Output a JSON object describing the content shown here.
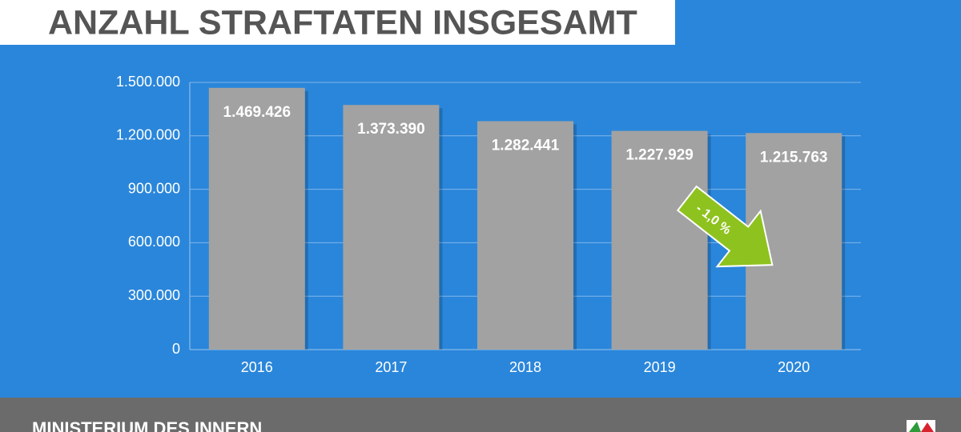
{
  "chart_data": {
    "type": "bar",
    "title": "ANZAHL STRAFTATEN INSGESAMT",
    "categories": [
      "2016",
      "2017",
      "2018",
      "2019",
      "2020"
    ],
    "values": [
      1469426,
      1373390,
      1282441,
      1227929,
      1215763
    ],
    "value_labels": [
      "1.469.426",
      "1.373.390",
      "1.282.441",
      "1.227.929",
      "1.215.763"
    ],
    "color": "#a2a2a2",
    "ylim": [
      0,
      1500000
    ],
    "yticks": [
      0,
      {
        "value": 300000,
        "label": "300.000"
      },
      {
        "value": 600000,
        "label": "600.000"
      },
      {
        "value": 900000,
        "label": "900.000"
      },
      {
        "value": 1200000,
        "label": "1.200.000"
      },
      {
        "value": 1500000,
        "label": "1.500.000"
      }
    ],
    "grid": true,
    "annotation": "- 1,0 %"
  },
  "footer": "MINISTERIUM DES INNERN"
}
